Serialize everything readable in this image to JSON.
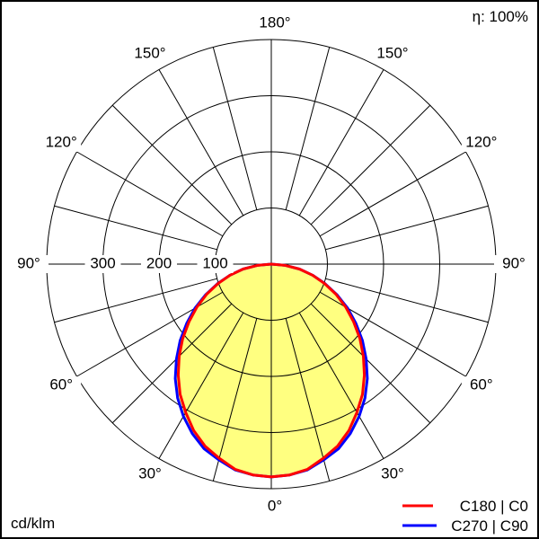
{
  "chart_data": {
    "type": "polar-line",
    "unit_label": "cd/klm",
    "efficiency_label": "η: 100%",
    "r_range": [
      0,
      400
    ],
    "r_ticks": [
      100,
      200,
      300
    ],
    "angle_ticks": [
      {
        "value": 180,
        "label": "180°"
      },
      {
        "value": 150,
        "label": "150°"
      },
      {
        "value": 120,
        "label": "120°"
      },
      {
        "value": 90,
        "label": "90°"
      },
      {
        "value": 60,
        "label": "60°"
      },
      {
        "value": 30,
        "label": "30°"
      },
      {
        "value": 0,
        "label": "0°"
      }
    ],
    "grid": true,
    "fill_color": "#ffff80",
    "legend_position": "bottom-right",
    "angles": [
      0,
      5,
      10,
      15,
      20,
      25,
      30,
      35,
      40,
      45,
      50,
      55,
      60,
      65,
      70,
      75,
      80,
      85,
      90
    ],
    "series": [
      {
        "name": "C270 | C90",
        "color": "#0000ff",
        "values": [
          379,
          377,
          372,
          361,
          350,
          333,
          313,
          291,
          266,
          239,
          212,
          184,
          157,
          129,
          102,
          76,
          51,
          25,
          0
        ]
      },
      {
        "name": "C180 | C0",
        "color": "#ff0000",
        "values": [
          379,
          377,
          371,
          358,
          345,
          327,
          305,
          283,
          258,
          232,
          206,
          179,
          153,
          127,
          101,
          76,
          51,
          25,
          0
        ]
      }
    ]
  }
}
